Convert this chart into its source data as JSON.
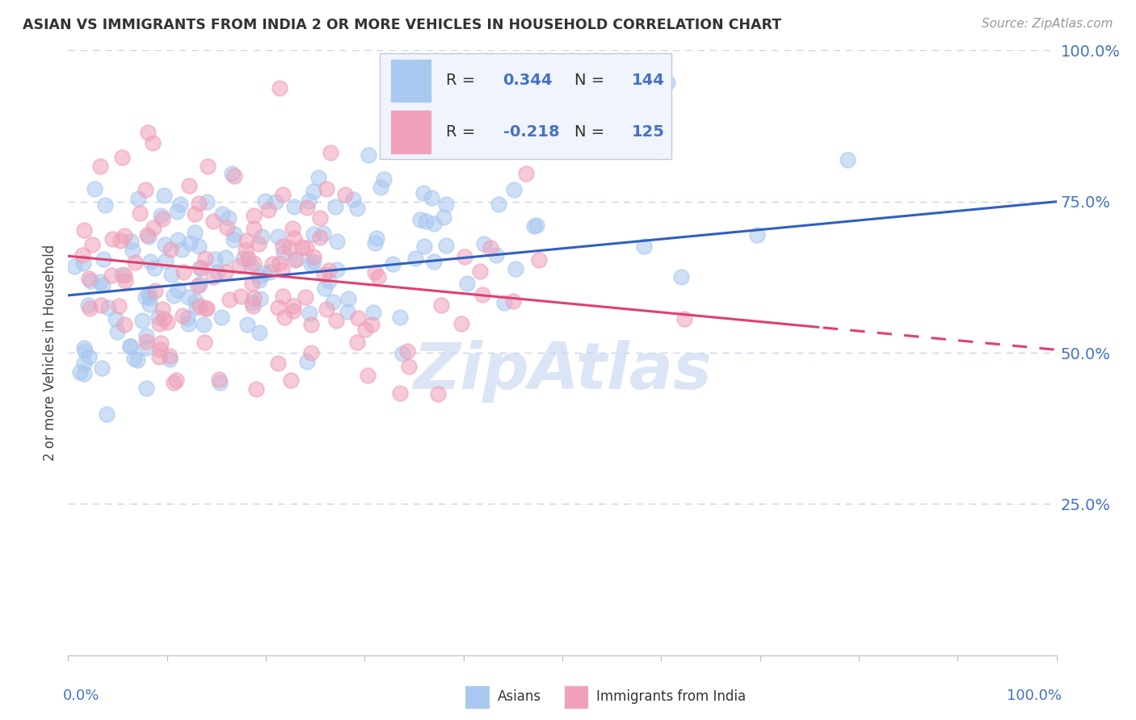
{
  "title": "ASIAN VS IMMIGRANTS FROM INDIA 2 OR MORE VEHICLES IN HOUSEHOLD CORRELATION CHART",
  "source": "Source: ZipAtlas.com",
  "ylabel": "2 or more Vehicles in Household",
  "asian_R": 0.344,
  "asian_N": 144,
  "india_R": -0.218,
  "india_N": 125,
  "asian_color": "#a8c8f0",
  "india_color": "#f0a0b8",
  "asian_line_color": "#3060c0",
  "india_line_color": "#e04070",
  "background_color": "#ffffff",
  "grid_color": "#c8d4e8",
  "watermark_color": "#c8d8f0",
  "legend_face": "#f0f4fc",
  "legend_edge": "#c0c8e0",
  "right_label_color": "#4472c4",
  "title_color": "#333333",
  "source_color": "#999999"
}
